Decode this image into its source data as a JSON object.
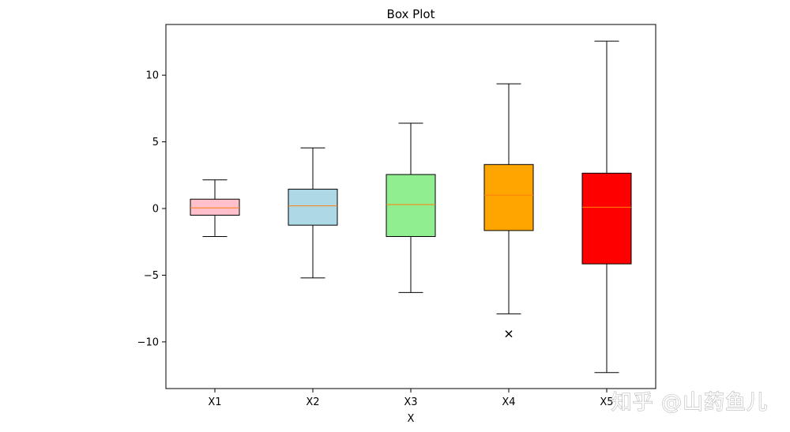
{
  "chart_data": {
    "type": "box",
    "title": "Box Plot",
    "xlabel": "X",
    "ylabel": "",
    "ylim": [
      -13.5,
      13.8
    ],
    "yticks": [
      10,
      5,
      0,
      -5,
      -10
    ],
    "ytick_labels": [
      "10",
      "5",
      "0",
      "−5",
      "−10"
    ],
    "grid": false,
    "categories": [
      "X1",
      "X2",
      "X3",
      "X4",
      "X5"
    ],
    "colors": [
      "#ffc0cb",
      "#add8e6",
      "#90ee90",
      "#ffa500",
      "#ff0000"
    ],
    "median_color": "#ff7f0e",
    "boxes": [
      {
        "name": "X1",
        "whisker_low": -2.1,
        "q1": -0.5,
        "median": 0.05,
        "q3": 0.7,
        "whisker_high": 2.15,
        "outliers": []
      },
      {
        "name": "X2",
        "whisker_low": -5.2,
        "q1": -1.25,
        "median": 0.2,
        "q3": 1.45,
        "whisker_high": 4.55,
        "outliers": []
      },
      {
        "name": "X3",
        "whisker_low": -6.3,
        "q1": -2.1,
        "median": 0.3,
        "q3": 2.55,
        "whisker_high": 6.4,
        "outliers": []
      },
      {
        "name": "X4",
        "whisker_low": -7.9,
        "q1": -1.65,
        "median": 1.0,
        "q3": 3.3,
        "whisker_high": 9.35,
        "outliers": [
          -9.4
        ]
      },
      {
        "name": "X5",
        "whisker_low": -12.3,
        "q1": -4.15,
        "median": 0.1,
        "q3": 2.65,
        "whisker_high": 12.55,
        "outliers": []
      }
    ]
  },
  "watermark": "知乎 @山药鱼儿"
}
